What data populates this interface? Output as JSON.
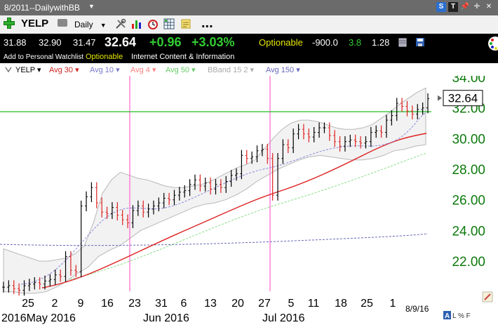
{
  "window": {
    "title": "8/2011--DailywithBB",
    "title_dropdown": "▼"
  },
  "toolbar": {
    "symbol": "YELP",
    "period": "Daily",
    "period_caret": "▼",
    "more": "...",
    "icons": [
      "add-icon",
      "printer-icon",
      "tools-icon",
      "bar-chart-icon",
      "alarm-clock-icon",
      "grid-icon",
      "note-icon"
    ]
  },
  "window_icons": {
    "s": "S",
    "t": "T",
    "pin": "📌",
    "move": "✛",
    "close": "✕"
  },
  "quote": {
    "open": "31.88",
    "high": "32.90",
    "low": "31.47",
    "last": "32.64",
    "change": "+0.96",
    "change_pct": "+3.03%",
    "optionable": "Optionable",
    "value1": "-900.0",
    "value2": "3.8",
    "value3": "1.28",
    "colors": {
      "up": "#33cc33",
      "optionable": "#e6e600"
    }
  },
  "info_row": {
    "watchlist": "Add to Personal Watchlist",
    "optionable": "Optionable",
    "category": "Internet Content & Information"
  },
  "indicators": [
    {
      "label": "YELP",
      "color": "#000000"
    },
    {
      "label": "Avg 30",
      "color": "#cc2222"
    },
    {
      "label": "Avg 10",
      "color": "#7777cc"
    },
    {
      "label": "Avg 4",
      "color": "#ff8080"
    },
    {
      "label": "Avg 50",
      "color": "#66cc66"
    },
    {
      "label": "BBand 15 2",
      "color": "#aaaaaa"
    },
    {
      "label": "Avg 150",
      "color": "#6666bb"
    }
  ],
  "chart_data": {
    "type": "ohlc",
    "y_ticks": [
      "34.00",
      "32.00",
      "30.00",
      "28.00",
      "26.00",
      "24.00",
      "22.00"
    ],
    "ylim": [
      20.0,
      35.0
    ],
    "last_price_label": "32.64",
    "horizontal_line": 31.75,
    "vertical_markers": [
      "2016-05-20",
      "2016-06-27"
    ],
    "x_ticks": [
      "25",
      "2",
      "9",
      "16",
      "23",
      "31",
      "6",
      "13",
      "20",
      "27",
      "5",
      "11",
      "18",
      "25",
      "1"
    ],
    "x_ticks_offset_days": [
      -1,
      6,
      13,
      20,
      27,
      35,
      41,
      48,
      55,
      62,
      70,
      76,
      83,
      90,
      97
    ],
    "month_labels": [
      "2016May 2016",
      "Jun 2016",
      "Jul 2016"
    ],
    "date_corner": "8/9/16",
    "bottom_icons": [
      "A",
      "L",
      "%",
      "F"
    ],
    "candles_close": [
      20.3,
      20.4,
      20.2,
      20.1,
      20.4,
      20.5,
      20.6,
      20.5,
      20.7,
      20.8,
      21.1,
      21.0,
      22.3,
      21.4,
      21.3,
      25.6,
      26.2,
      26.8,
      25.8,
      25.2,
      25.1,
      25.5,
      25.0,
      24.7,
      24.5,
      25.3,
      25.6,
      25.2,
      25.4,
      25.6,
      25.8,
      26.1,
      26.0,
      26.3,
      26.5,
      26.6,
      27.0,
      27.3,
      26.9,
      27.1,
      26.7,
      27.0,
      26.8,
      27.2,
      27.6,
      27.7,
      28.9,
      28.7,
      28.8,
      29.2,
      29.3,
      28.7,
      26.3,
      28.7,
      29.6,
      29.4,
      30.3,
      30.6,
      30.3,
      30.1,
      30.4,
      30.7,
      30.7,
      30.2,
      29.8,
      29.5,
      29.8,
      29.9,
      29.8,
      29.7,
      29.8,
      30.4,
      30.5,
      30.4,
      31.2,
      31.5,
      32.3,
      32.1,
      31.8,
      31.6,
      31.9,
      32.0,
      32.6
    ],
    "bband_upper": [
      22.8,
      22.6,
      22.4,
      22.2,
      22.0,
      22.0,
      22.1,
      22.2,
      22.5,
      23.0,
      24.5,
      26.4,
      27.3,
      27.8,
      27.6,
      27.4,
      27.3,
      27.1,
      26.9,
      26.8,
      26.8,
      26.9,
      27.0,
      27.2,
      27.5,
      27.8,
      28.1,
      28.3,
      28.6,
      29.3,
      30.0,
      30.6,
      31.0,
      31.2,
      31.2,
      31.1,
      30.9,
      30.7,
      30.6,
      30.6,
      30.7,
      30.9,
      31.3,
      31.7,
      32.2,
      32.6,
      33.0,
      33.3
    ],
    "bband_lower": [
      20.0,
      20.0,
      19.9,
      19.9,
      20.0,
      20.3,
      20.7,
      21.2,
      21.6,
      22.3,
      22.7,
      23.0,
      23.5,
      24.0,
      24.3,
      24.6,
      24.9,
      25.2,
      25.5,
      25.7,
      25.8,
      26.0,
      26.3,
      26.7,
      27.2,
      27.6,
      28.0,
      28.3,
      28.6,
      28.8,
      28.9,
      28.8,
      28.7,
      28.6,
      28.6,
      28.7,
      28.9,
      29.2,
      29.3,
      29.5,
      29.6
    ]
  }
}
